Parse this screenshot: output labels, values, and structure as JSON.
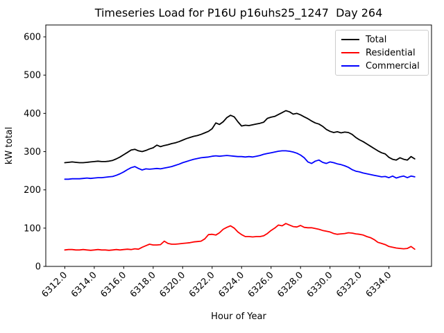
{
  "chart_data": {
    "type": "line",
    "title": "Timeseries Load for P16U p16uhs25_1247  Day 264",
    "xlabel": "Hour of Year",
    "ylabel": "kW total",
    "xlim": [
      6310.71,
      6336.89
    ],
    "ylim": [
      0,
      631
    ],
    "grid": false,
    "legend_position": "upper right",
    "xtick_rotation": 45,
    "xticks": [
      6312,
      6314,
      6316,
      6318,
      6320,
      6322,
      6324,
      6326,
      6328,
      6330,
      6332,
      6334
    ],
    "xtick_labels": [
      "6312.0",
      "6314.0",
      "6316.0",
      "6318.0",
      "6320.0",
      "6322.0",
      "6324.0",
      "6326.0",
      "6328.0",
      "6330.0",
      "6332.0",
      "6334.0"
    ],
    "yticks": [
      0,
      100,
      200,
      300,
      400,
      500,
      600
    ],
    "ytick_labels": [
      "0",
      "100",
      "200",
      "300",
      "400",
      "500",
      "600"
    ],
    "x": [
      6312.0,
      6312.25,
      6312.5,
      6312.75,
      6313.0,
      6313.25,
      6313.5,
      6313.75,
      6314.0,
      6314.25,
      6314.5,
      6314.75,
      6315.0,
      6315.25,
      6315.5,
      6315.75,
      6316.0,
      6316.25,
      6316.5,
      6316.75,
      6317.0,
      6317.25,
      6317.5,
      6317.75,
      6318.0,
      6318.25,
      6318.5,
      6318.75,
      6319.0,
      6319.25,
      6319.5,
      6319.75,
      6320.0,
      6320.25,
      6320.5,
      6320.75,
      6321.0,
      6321.25,
      6321.5,
      6321.75,
      6322.0,
      6322.25,
      6322.5,
      6322.75,
      6323.0,
      6323.25,
      6323.5,
      6323.75,
      6324.0,
      6324.25,
      6324.5,
      6324.75,
      6325.0,
      6325.25,
      6325.5,
      6325.75,
      6326.0,
      6326.25,
      6326.5,
      6326.75,
      6327.0,
      6327.25,
      6327.5,
      6327.75,
      6328.0,
      6328.25,
      6328.5,
      6328.75,
      6329.0,
      6329.25,
      6329.5,
      6329.75,
      6330.0,
      6330.25,
      6330.5,
      6330.75,
      6331.0,
      6331.25,
      6331.5,
      6331.75,
      6332.0,
      6332.25,
      6332.5,
      6332.75,
      6333.0,
      6333.25,
      6333.5,
      6333.75,
      6334.0,
      6334.25,
      6334.5,
      6334.75,
      6335.0,
      6335.25,
      6335.5,
      6335.75
    ],
    "series": [
      {
        "name": "Total",
        "color": "#000000",
        "values": [
          271,
          272,
          273,
          272,
          271,
          271,
          272,
          273,
          274,
          275,
          274,
          274,
          275,
          277,
          281,
          286,
          292,
          298,
          304,
          306,
          302,
          300,
          303,
          307,
          310,
          317,
          313,
          316,
          318,
          321,
          323,
          326,
          330,
          334,
          337,
          340,
          342,
          345,
          349,
          353,
          360,
          375,
          371,
          378,
          389,
          395,
          391,
          378,
          367,
          369,
          368,
          370,
          372,
          374,
          377,
          387,
          390,
          392,
          397,
          402,
          407,
          404,
          398,
          400,
          396,
          391,
          386,
          380,
          375,
          372,
          366,
          358,
          353,
          350,
          352,
          349,
          351,
          350,
          345,
          337,
          331,
          326,
          320,
          314,
          308,
          302,
          297,
          294,
          285,
          280,
          278,
          284,
          280,
          278,
          287,
          281
        ]
      },
      {
        "name": "Residential",
        "color": "#ff0000",
        "values": [
          43,
          44,
          44,
          43,
          43,
          44,
          43,
          42,
          43,
          44,
          43,
          43,
          42,
          43,
          44,
          43,
          44,
          45,
          44,
          46,
          45,
          50,
          54,
          58,
          56,
          56,
          57,
          66,
          60,
          58,
          58,
          59,
          60,
          61,
          62,
          64,
          65,
          66,
          72,
          83,
          84,
          82,
          88,
          97,
          102,
          106,
          100,
          90,
          83,
          78,
          78,
          77,
          78,
          78,
          80,
          86,
          94,
          100,
          108,
          106,
          112,
          108,
          104,
          103,
          107,
          102,
          101,
          101,
          99,
          97,
          94,
          92,
          90,
          86,
          84,
          85,
          86,
          88,
          87,
          85,
          84,
          82,
          78,
          75,
          70,
          63,
          60,
          57,
          52,
          50,
          48,
          47,
          46,
          47,
          52,
          45
        ]
      },
      {
        "name": "Commercial",
        "color": "#0000ff",
        "values": [
          228,
          228,
          229,
          229,
          229,
          230,
          231,
          230,
          231,
          232,
          232,
          233,
          234,
          235,
          238,
          242,
          247,
          253,
          258,
          261,
          256,
          252,
          255,
          254,
          255,
          256,
          255,
          257,
          259,
          261,
          264,
          267,
          271,
          274,
          277,
          280,
          282,
          284,
          285,
          286,
          288,
          289,
          288,
          289,
          290,
          289,
          288,
          287,
          287,
          286,
          287,
          286,
          288,
          290,
          293,
          295,
          297,
          299,
          301,
          302,
          302,
          301,
          299,
          296,
          291,
          284,
          273,
          269,
          275,
          278,
          272,
          269,
          273,
          271,
          268,
          266,
          263,
          259,
          253,
          249,
          247,
          244,
          242,
          240,
          238,
          236,
          234,
          235,
          232,
          236,
          231,
          234,
          236,
          232,
          236,
          234
        ]
      }
    ]
  }
}
